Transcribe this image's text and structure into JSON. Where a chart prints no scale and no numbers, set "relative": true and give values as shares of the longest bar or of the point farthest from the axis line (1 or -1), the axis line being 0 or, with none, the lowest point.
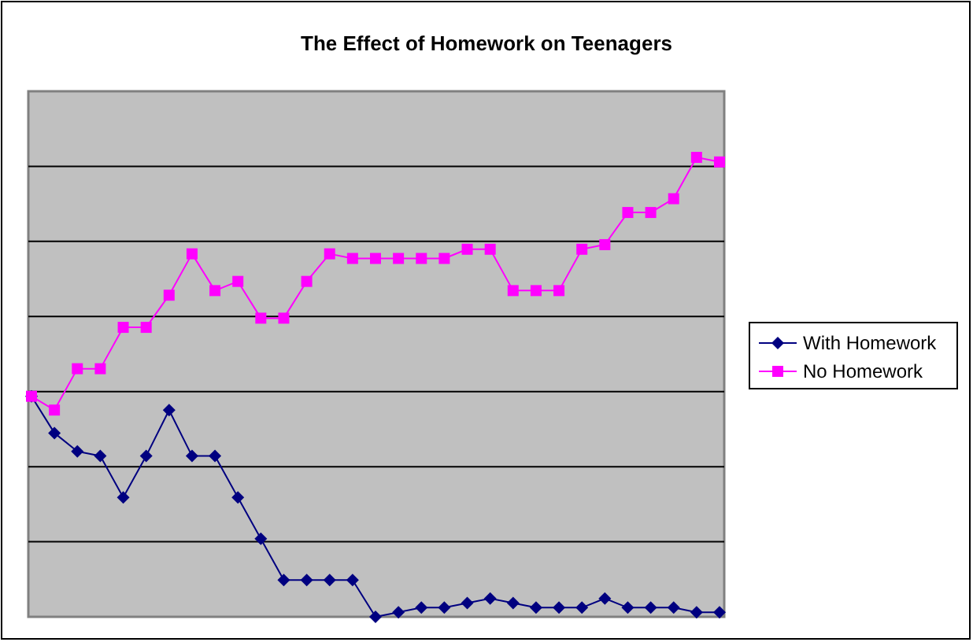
{
  "chart_data": {
    "type": "line",
    "title": "The Effect of Homework on Teenagers",
    "relative": true,
    "grid": true,
    "legend": "right",
    "categories": [
      null,
      null,
      null,
      null,
      null,
      null,
      null,
      null,
      null,
      null,
      null,
      null,
      null,
      null,
      null,
      null,
      null,
      null,
      null,
      null,
      null,
      null,
      null,
      null,
      null,
      null,
      null,
      null,
      null,
      null,
      null
    ],
    "series": [
      {
        "name": "With Homework",
        "color": "#000080",
        "marker": "diamond",
        "values": [
          0.48,
          0.4,
          0.36,
          0.35,
          0.26,
          0.35,
          0.45,
          0.35,
          0.35,
          0.26,
          0.17,
          0.08,
          0.08,
          0.08,
          0.08,
          0,
          0.01,
          0.02,
          0.02,
          0.03,
          0.04,
          0.03,
          0.02,
          0.02,
          0.02,
          0.04,
          0.02,
          0.02,
          0.02,
          0.01,
          0.01
        ]
      },
      {
        "name": "No Homework",
        "color": "#ff00ff",
        "marker": "square",
        "values": [
          0.48,
          0.45,
          0.54,
          0.54,
          0.63,
          0.63,
          0.7,
          0.79,
          0.71,
          0.73,
          0.65,
          0.65,
          0.73,
          0.79,
          0.78,
          0.78,
          0.78,
          0.78,
          0.78,
          0.8,
          0.8,
          0.71,
          0.71,
          0.71,
          0.8,
          0.81,
          0.88,
          0.88,
          0.91,
          1,
          0.99
        ]
      }
    ]
  }
}
